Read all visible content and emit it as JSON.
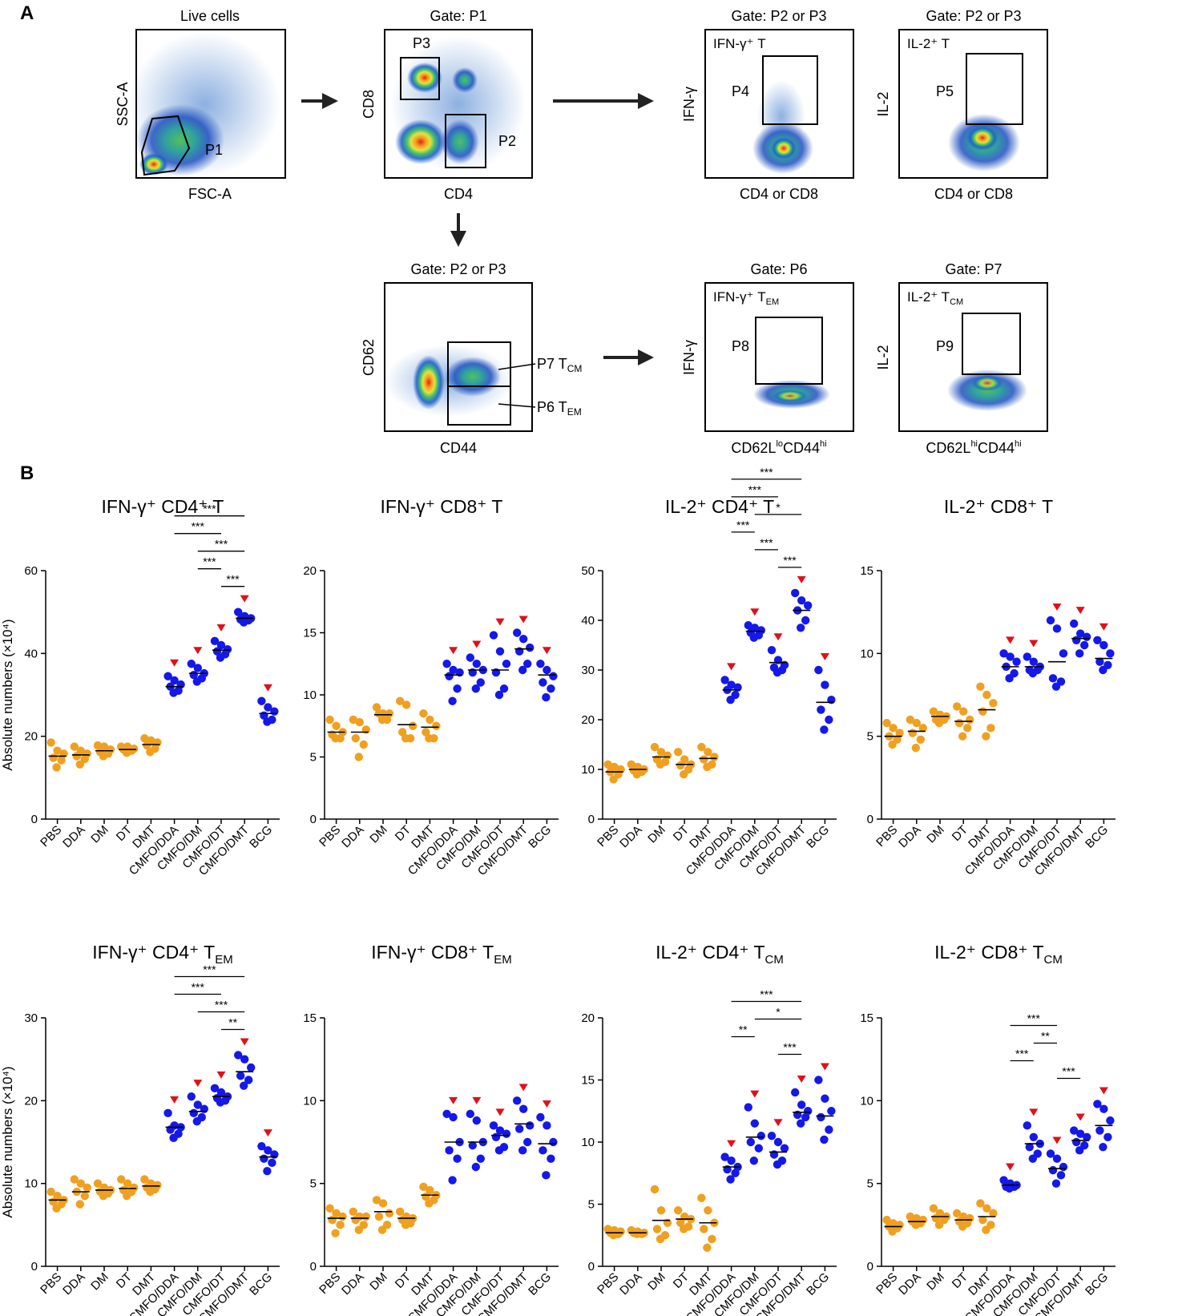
{
  "figure": {
    "panel_a_label": "A",
    "panel_b_label": "B",
    "y_axis_label": "Absolute numbers (×10⁴)"
  },
  "colors": {
    "vaccine_group": "#F0A020",
    "cmfo_group": "#1418E8",
    "significance_marker": "#E0101A",
    "mean_line": "#000000"
  },
  "gating": {
    "plots": [
      {
        "id": "live",
        "title": "Live cells",
        "xlabel": "FSC-A",
        "ylabel": "SSC-A",
        "gates": [
          "P1"
        ]
      },
      {
        "id": "p1",
        "title": "Gate: P1",
        "xlabel": "CD4",
        "ylabel": "CD8",
        "gates": [
          "P3",
          "P2"
        ]
      },
      {
        "id": "ifng",
        "title": "Gate: P2 or P3",
        "xlabel": "CD4 or CD8",
        "ylabel": "IFN-γ",
        "inner": "IFN-γ⁺ T",
        "gates": [
          "P4"
        ]
      },
      {
        "id": "il2",
        "title": "Gate: P2 or P3",
        "xlabel": "CD4 or CD8",
        "ylabel": "IL-2",
        "inner": "IL-2⁺ T",
        "gates": [
          "P5"
        ]
      },
      {
        "id": "mem",
        "title": "Gate: P2 or P3",
        "xlabel": "CD44",
        "ylabel": "CD62",
        "gates": [
          "P7 T",
          "CM",
          "P6 T",
          "EM"
        ]
      },
      {
        "id": "ifngem",
        "title": "Gate: P6",
        "xlabel": "CD62L",
        "xlabel_sup1": "lo",
        "xlabel_mid": "CD44",
        "xlabel_sup2": "hi",
        "ylabel": "IFN-γ",
        "inner": "IFN-γ⁺ T",
        "inner_sub": "EM",
        "gates": [
          "P8"
        ]
      },
      {
        "id": "il2cm",
        "title": "Gate: P7",
        "xlabel": "CD62L",
        "xlabel_sup1": "hi",
        "xlabel_mid": "CD44",
        "xlabel_sup2": "hi",
        "ylabel": "IL-2",
        "inner": "IL-2⁺ T",
        "inner_sub": "CM",
        "gates": [
          "P9"
        ]
      }
    ]
  },
  "chart_data": [
    {
      "type": "scatter",
      "title": "IFN-γ⁺ CD4⁺ T",
      "ylabel": "Absolute numbers (×10⁴)",
      "ylim": [
        0,
        60
      ],
      "yticks": [
        0,
        20,
        40,
        60
      ],
      "categories": [
        "PBS",
        "DDA",
        "DM",
        "DT",
        "DMT",
        "CMFO/DDA",
        "CMFO/DM",
        "CMFO/DT",
        "CMFO/DMT",
        "BCG"
      ],
      "means": [
        15.2,
        15.5,
        16.5,
        16.8,
        18.0,
        32.0,
        35.2,
        40.8,
        48.5,
        25.5
      ],
      "points": [
        [
          18.5,
          16.5,
          15.8,
          14.8,
          14.2,
          12.5
        ],
        [
          17.5,
          16.5,
          15.8,
          15.2,
          14.5,
          13.2
        ],
        [
          17.8,
          17.5,
          16.8,
          16.2,
          15.8,
          15.2
        ],
        [
          17.5,
          17.5,
          17.0,
          16.8,
          16.5,
          16.0
        ],
        [
          19.5,
          19.0,
          18.5,
          17.8,
          17.0,
          16.2
        ],
        [
          34.5,
          33.5,
          32.5,
          32.0,
          31.0,
          30.5
        ],
        [
          37.5,
          36.5,
          35.2,
          34.8,
          34.0,
          33.2
        ],
        [
          43.0,
          42.0,
          41.0,
          40.5,
          39.8,
          39.0
        ],
        [
          50.0,
          49.0,
          48.5,
          48.2,
          48.0,
          47.5
        ],
        [
          28.5,
          27.0,
          26.0,
          25.0,
          24.0,
          23.5
        ]
      ],
      "significant": [
        false,
        false,
        false,
        false,
        false,
        true,
        true,
        true,
        true,
        true
      ],
      "brackets": [
        {
          "from": 5,
          "to": 8,
          "label": "***"
        },
        {
          "from": 6,
          "to": 8,
          "label": "***"
        },
        {
          "from": 7,
          "to": 8,
          "label": "***"
        },
        {
          "from": 5,
          "to": 7,
          "label": "***"
        },
        {
          "from": 6,
          "to": 7,
          "label": "***"
        }
      ]
    },
    {
      "type": "scatter",
      "title": "IFN-γ⁺ CD8⁺ T",
      "ylim": [
        0,
        20
      ],
      "yticks": [
        0,
        5,
        10,
        15,
        20
      ],
      "categories": [
        "PBS",
        "DDA",
        "DM",
        "DT",
        "DMT",
        "CMFO/DDA",
        "CMFO/DM",
        "CMFO/DT",
        "CMFO/DMT",
        "BCG"
      ],
      "means": [
        7.0,
        7.0,
        8.4,
        7.6,
        7.4,
        11.6,
        12.0,
        12.0,
        13.7,
        11.6
      ],
      "points": [
        [
          8.0,
          7.5,
          7.0,
          6.8,
          6.5,
          6.5
        ],
        [
          8.0,
          7.8,
          7.2,
          6.5,
          6.0,
          5.0
        ],
        [
          9.0,
          8.5,
          8.5,
          8.5,
          8.0,
          8.0
        ],
        [
          9.5,
          9.2,
          7.5,
          7.0,
          6.5,
          6.5
        ],
        [
          8.5,
          8.0,
          7.5,
          7.0,
          6.5,
          6.5
        ],
        [
          12.5,
          12.0,
          11.8,
          11.5,
          10.5,
          9.5
        ],
        [
          13.0,
          12.5,
          12.0,
          11.8,
          11.0,
          10.5
        ],
        [
          14.8,
          13.5,
          12.5,
          11.8,
          10.5,
          10.0
        ],
        [
          15.0,
          14.5,
          13.8,
          13.5,
          12.5,
          12.0
        ],
        [
          12.5,
          12.0,
          11.5,
          11.0,
          10.5,
          9.8
        ]
      ],
      "significant": [
        false,
        false,
        false,
        false,
        false,
        true,
        true,
        true,
        true,
        true
      ],
      "brackets": []
    },
    {
      "type": "scatter",
      "title": "IL-2⁺ CD4⁺ T",
      "ylim": [
        0,
        50
      ],
      "yticks": [
        0,
        10,
        20,
        30,
        40,
        50
      ],
      "categories": [
        "PBS",
        "DDA",
        "DM",
        "DT",
        "DMT",
        "CMFO/DDA",
        "CMFO/DM",
        "CMFO/DT",
        "CMFO/DMT",
        "BCG"
      ],
      "means": [
        9.5,
        10.0,
        12.5,
        11.0,
        12.2,
        26.0,
        37.8,
        31.5,
        42.0,
        23.5
      ],
      "points": [
        [
          11.0,
          10.5,
          10.0,
          9.5,
          9.0,
          8.0
        ],
        [
          11.0,
          10.5,
          10.0,
          9.8,
          9.5,
          9.0
        ],
        [
          14.5,
          13.5,
          12.8,
          12.0,
          11.5,
          11.0
        ],
        [
          13.5,
          12.0,
          11.0,
          10.8,
          10.0,
          9.0
        ],
        [
          14.5,
          13.5,
          12.5,
          12.0,
          11.0,
          10.5
        ],
        [
          28.0,
          27.0,
          26.5,
          26.0,
          25.0,
          24.0
        ],
        [
          39.0,
          38.5,
          38.0,
          37.5,
          37.0,
          36.5
        ],
        [
          34.0,
          32.0,
          31.0,
          30.5,
          30.0,
          29.5
        ],
        [
          45.5,
          44.0,
          43.0,
          42.0,
          40.0,
          38.5
        ],
        [
          30.0,
          27.0,
          24.0,
          22.0,
          20.0,
          18.0
        ]
      ],
      "significant": [
        false,
        false,
        false,
        false,
        false,
        true,
        true,
        true,
        true,
        true
      ],
      "brackets": [
        {
          "from": 5,
          "to": 8,
          "label": "***"
        },
        {
          "from": 6,
          "to": 8,
          "label": "*"
        },
        {
          "from": 5,
          "to": 7,
          "label": "***"
        },
        {
          "from": 7,
          "to": 8,
          "label": "***"
        },
        {
          "from": 6,
          "to": 7,
          "label": "***"
        },
        {
          "from": 5,
          "to": 6,
          "label": "***"
        }
      ]
    },
    {
      "type": "scatter",
      "title": "IL-2⁺ CD8⁺ T",
      "ylim": [
        0,
        15
      ],
      "yticks": [
        0,
        5,
        10,
        15
      ],
      "categories": [
        "PBS",
        "DDA",
        "DM",
        "DT",
        "DMT",
        "CMFO/DDA",
        "CMFO/DM",
        "CMFO/DT",
        "CMFO/DMT",
        "BCG"
      ],
      "means": [
        5.0,
        5.3,
        6.2,
        5.9,
        6.6,
        9.2,
        9.2,
        9.5,
        10.9,
        9.7
      ],
      "points": [
        [
          5.8,
          5.5,
          5.2,
          5.0,
          4.8,
          4.5
        ],
        [
          6.0,
          5.8,
          5.5,
          5.2,
          4.8,
          4.3
        ],
        [
          6.5,
          6.3,
          6.2,
          6.0,
          6.0,
          5.8
        ],
        [
          6.8,
          6.5,
          6.0,
          5.8,
          5.5,
          5.0
        ],
        [
          8.0,
          7.5,
          7.0,
          6.5,
          5.5,
          5.0
        ],
        [
          10.0,
          9.8,
          9.5,
          9.2,
          8.8,
          8.5
        ],
        [
          9.8,
          9.5,
          9.2,
          9.0,
          9.0,
          8.8
        ],
        [
          12.0,
          11.5,
          10.0,
          8.5,
          8.3,
          8.0
        ],
        [
          11.8,
          11.2,
          11.0,
          10.8,
          10.5,
          10.0
        ],
        [
          10.8,
          10.5,
          10.0,
          9.5,
          9.3,
          9.0
        ]
      ],
      "significant": [
        false,
        false,
        false,
        false,
        false,
        true,
        true,
        true,
        true,
        true
      ],
      "brackets": []
    },
    {
      "type": "scatter",
      "title": "IFN-γ⁺ CD4⁺ T",
      "title_sub": "EM",
      "ylabel": "Absolute numbers (×10⁴)",
      "ylim": [
        0,
        30
      ],
      "yticks": [
        0,
        10,
        20,
        30
      ],
      "categories": [
        "PBS",
        "DDA",
        "DM",
        "DT",
        "DMT",
        "CMFO/DDA",
        "CMFO/DM",
        "CMFO/DT",
        "CMFO/DMT",
        "BCG"
      ],
      "means": [
        8.0,
        9.0,
        9.2,
        9.4,
        9.7,
        16.8,
        18.7,
        20.5,
        23.5,
        13.2
      ],
      "points": [
        [
          9.0,
          8.5,
          8.0,
          7.8,
          7.5,
          7.0
        ],
        [
          10.5,
          10.0,
          9.5,
          9.0,
          8.5,
          7.5
        ],
        [
          10.0,
          9.5,
          9.2,
          9.0,
          8.8,
          8.5
        ],
        [
          10.5,
          10.0,
          9.5,
          9.2,
          9.0,
          8.5
        ],
        [
          10.5,
          10.0,
          9.8,
          9.5,
          9.3,
          9.0
        ],
        [
          18.5,
          17.0,
          16.8,
          16.5,
          16.0,
          15.5
        ],
        [
          20.5,
          19.5,
          19.0,
          18.5,
          18.0,
          17.5
        ],
        [
          21.5,
          21.0,
          20.5,
          20.3,
          20.0,
          19.8
        ],
        [
          25.5,
          25.0,
          24.0,
          23.0,
          22.5,
          21.8
        ],
        [
          14.5,
          14.0,
          13.5,
          13.0,
          12.5,
          11.5
        ]
      ],
      "significant": [
        false,
        false,
        false,
        false,
        false,
        true,
        true,
        true,
        true,
        true
      ],
      "brackets": [
        {
          "from": 5,
          "to": 8,
          "label": "***"
        },
        {
          "from": 6,
          "to": 8,
          "label": "***"
        },
        {
          "from": 7,
          "to": 8,
          "label": "**"
        },
        {
          "from": 5,
          "to": 7,
          "label": "***"
        }
      ]
    },
    {
      "type": "scatter",
      "title": "IFN-γ⁺ CD8⁺ T",
      "title_sub": "EM",
      "ylim": [
        0,
        15
      ],
      "yticks": [
        0,
        5,
        10,
        15
      ],
      "categories": [
        "PBS",
        "DDA",
        "DM",
        "DT",
        "DMT",
        "CMFO/DDA",
        "CMFO/DM",
        "CMFO/DT",
        "CMFO/DMT",
        "BCG"
      ],
      "means": [
        2.9,
        2.9,
        3.3,
        2.9,
        4.3,
        7.5,
        7.5,
        7.9,
        8.6,
        7.4
      ],
      "points": [
        [
          3.5,
          3.2,
          3.0,
          2.8,
          2.5,
          2.0
        ],
        [
          3.3,
          3.0,
          3.0,
          2.8,
          2.5,
          2.2
        ],
        [
          4.0,
          3.8,
          3.2,
          3.0,
          2.5,
          2.2
        ],
        [
          3.3,
          3.0,
          2.9,
          2.8,
          2.6,
          2.5
        ],
        [
          4.8,
          4.6,
          4.3,
          4.2,
          4.0,
          3.8
        ],
        [
          9.2,
          9.0,
          7.5,
          7.0,
          6.5,
          5.2
        ],
        [
          9.2,
          8.8,
          7.5,
          7.3,
          6.5,
          6.0
        ],
        [
          8.5,
          8.2,
          8.0,
          7.8,
          7.2,
          7.0
        ],
        [
          10.0,
          9.5,
          8.5,
          8.3,
          7.5,
          7.0
        ],
        [
          9.0,
          8.5,
          7.5,
          7.0,
          6.5,
          5.5
        ]
      ],
      "significant": [
        false,
        false,
        false,
        false,
        false,
        true,
        true,
        true,
        true,
        true
      ],
      "brackets": []
    },
    {
      "type": "scatter",
      "title": "IL-2⁺ CD4⁺ T",
      "title_sub": "CM",
      "ylim": [
        0,
        20
      ],
      "yticks": [
        0,
        5,
        10,
        15,
        20
      ],
      "categories": [
        "PBS",
        "DDA",
        "DM",
        "DT",
        "DMT",
        "CMFO/DDA",
        "CMFO/DM",
        "CMFO/DT",
        "CMFO/DMT",
        "BCG"
      ],
      "means": [
        2.7,
        2.7,
        3.7,
        3.8,
        3.5,
        8.0,
        10.4,
        9.2,
        12.4,
        12.1
      ],
      "points": [
        [
          3.0,
          2.9,
          2.8,
          2.7,
          2.6,
          2.5
        ],
        [
          2.9,
          2.8,
          2.7,
          2.7,
          2.6,
          2.6
        ],
        [
          6.2,
          4.5,
          3.5,
          3.0,
          2.5,
          2.2
        ],
        [
          4.5,
          4.0,
          3.8,
          3.5,
          3.2,
          3.0
        ],
        [
          5.5,
          4.5,
          3.5,
          3.0,
          2.2,
          1.5
        ],
        [
          8.8,
          8.5,
          8.0,
          7.8,
          7.5,
          7.0
        ],
        [
          12.8,
          11.5,
          10.5,
          10.0,
          9.5,
          8.5
        ],
        [
          10.5,
          10.0,
          9.5,
          9.0,
          8.5,
          8.2
        ],
        [
          14.0,
          13.0,
          12.5,
          12.2,
          12.0,
          11.5
        ],
        [
          15.0,
          13.5,
          12.5,
          12.0,
          11.0,
          10.2
        ]
      ],
      "significant": [
        false,
        false,
        false,
        false,
        false,
        true,
        true,
        true,
        true,
        true
      ],
      "brackets": [
        {
          "from": 5,
          "to": 8,
          "label": "***"
        },
        {
          "from": 6,
          "to": 8,
          "label": "*"
        },
        {
          "from": 7,
          "to": 8,
          "label": "***"
        },
        {
          "from": 5,
          "to": 6,
          "label": "**"
        }
      ]
    },
    {
      "type": "scatter",
      "title": "IL-2⁺ CD8⁺ T",
      "title_sub": "CM",
      "ylim": [
        0,
        15
      ],
      "yticks": [
        0,
        5,
        10,
        15
      ],
      "categories": [
        "PBS",
        "DDA",
        "DM",
        "DT",
        "DMT",
        "CMFO/DDA",
        "CMFO/DM",
        "CMFO/DT",
        "CMFO/DMT",
        "BCG"
      ],
      "means": [
        2.4,
        2.7,
        3.0,
        2.8,
        3.0,
        4.9,
        7.4,
        5.9,
        7.6,
        8.5
      ],
      "points": [
        [
          2.8,
          2.6,
          2.5,
          2.4,
          2.3,
          2.1
        ],
        [
          3.0,
          2.9,
          2.8,
          2.7,
          2.6,
          2.5
        ],
        [
          3.5,
          3.2,
          3.0,
          2.9,
          2.8,
          2.5
        ],
        [
          3.2,
          3.0,
          2.9,
          2.7,
          2.6,
          2.4
        ],
        [
          3.8,
          3.5,
          3.2,
          2.8,
          2.5,
          2.2
        ],
        [
          5.2,
          5.0,
          4.9,
          4.8,
          4.8,
          4.7
        ],
        [
          8.5,
          7.8,
          7.4,
          7.2,
          6.8,
          6.5
        ],
        [
          6.8,
          6.5,
          6.0,
          5.8,
          5.5,
          5.0
        ],
        [
          8.2,
          8.0,
          7.8,
          7.5,
          7.3,
          7.0
        ],
        [
          9.8,
          9.5,
          8.8,
          8.2,
          7.8,
          7.2
        ]
      ],
      "significant": [
        false,
        false,
        false,
        false,
        false,
        true,
        true,
        true,
        true,
        true
      ],
      "brackets": [
        {
          "from": 5,
          "to": 7,
          "label": "***"
        },
        {
          "from": 7,
          "to": 8,
          "label": "***"
        },
        {
          "from": 5,
          "to": 6,
          "label": "***"
        },
        {
          "from": 6,
          "to": 7,
          "label": "**"
        }
      ]
    }
  ]
}
